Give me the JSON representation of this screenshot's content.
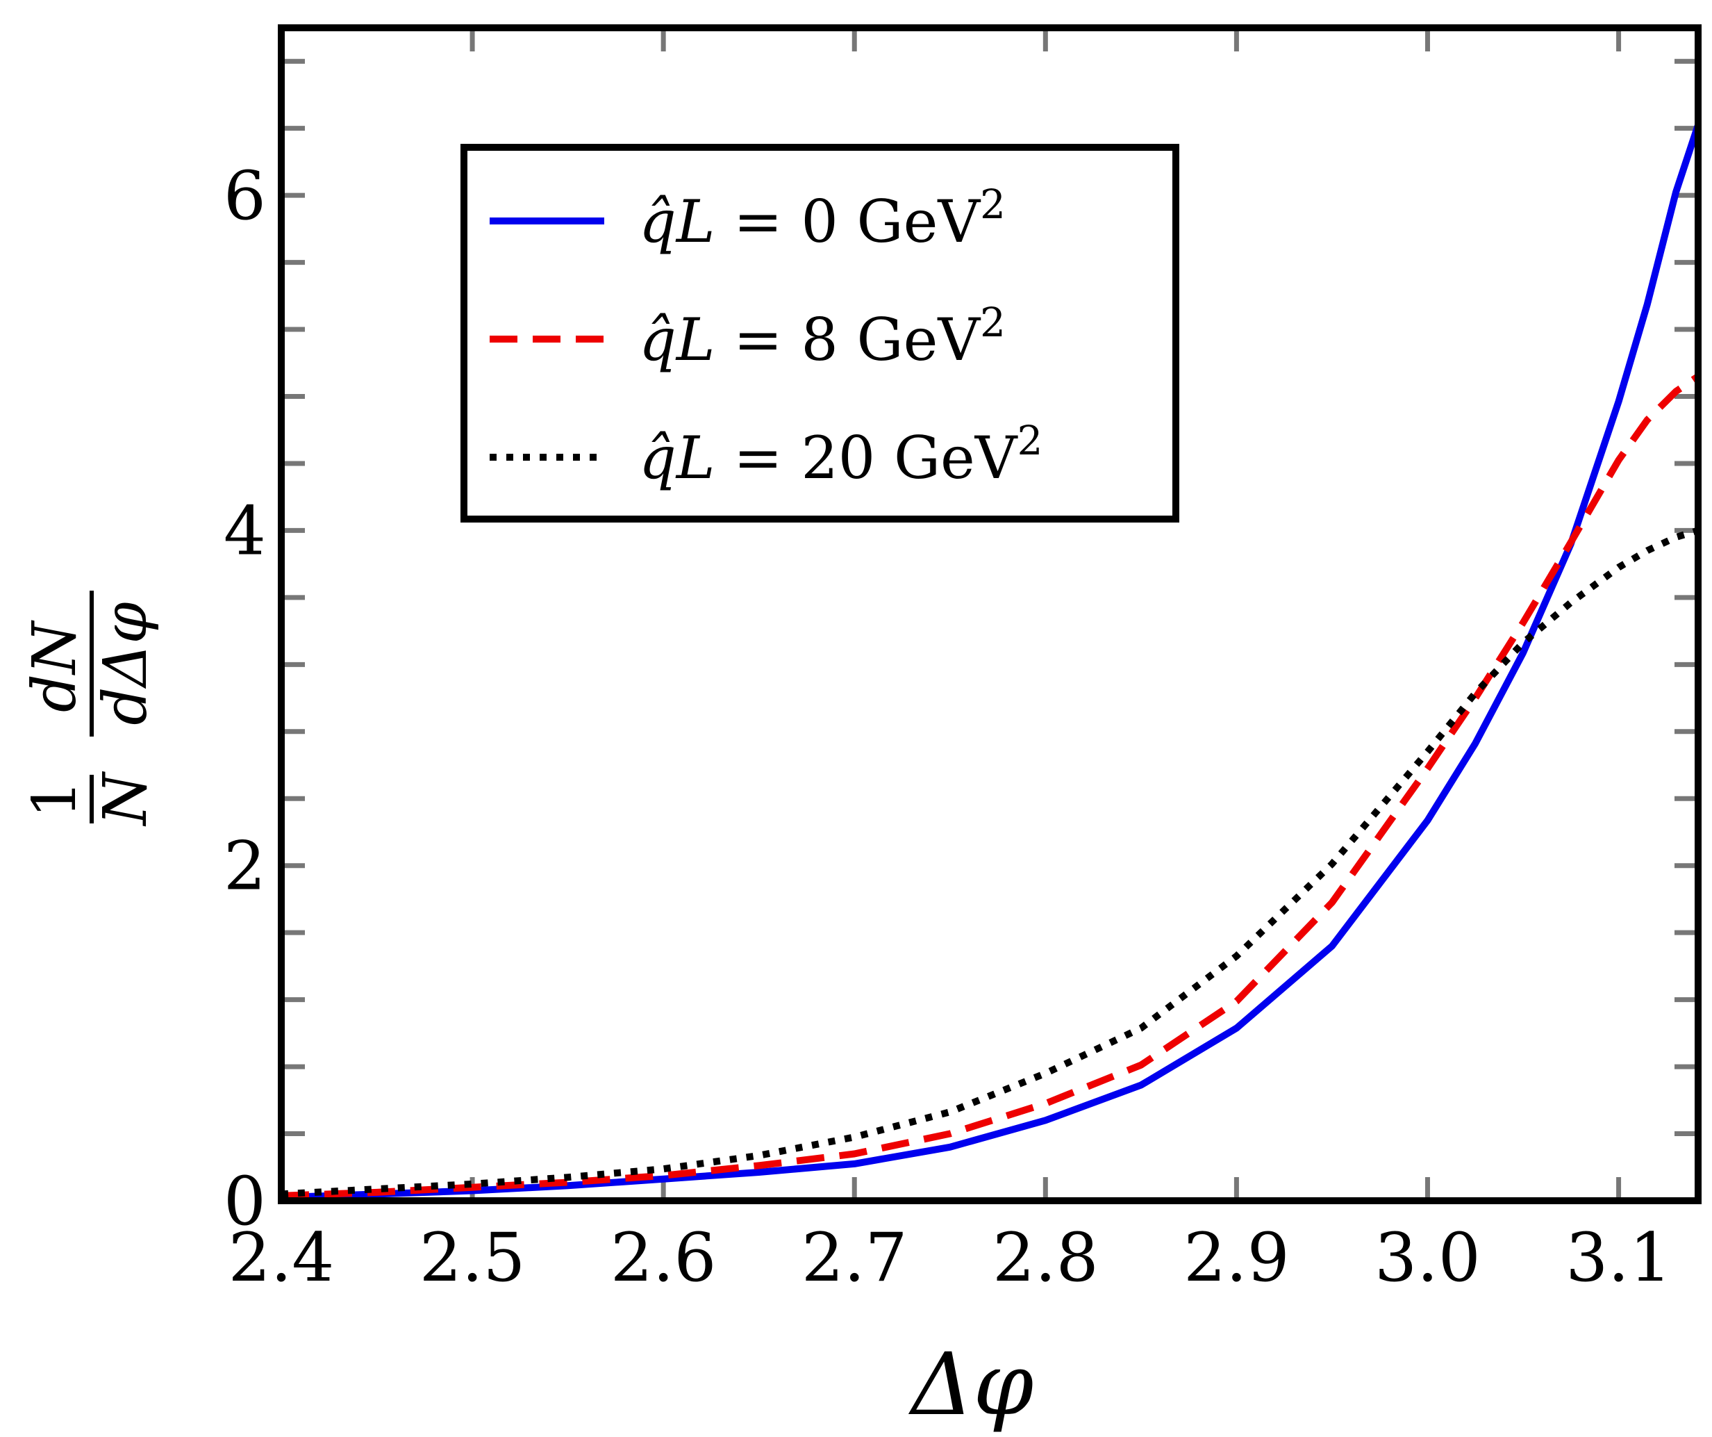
{
  "chart_data": {
    "type": "line",
    "title": "",
    "xlabel": "Δφ",
    "ylabel": {
      "numerator_left": "1",
      "denominator_left": "N",
      "numerator_right": "dN",
      "denominator_right": "dΔφ"
    },
    "xlim": [
      2.4,
      3.1416
    ],
    "ylim": [
      0,
      7
    ],
    "grid": false,
    "legend_position": "upper-left inside",
    "x_ticks": [
      2.4,
      2.5,
      2.6,
      2.7,
      2.8,
      2.9,
      3.0,
      3.1
    ],
    "x_tick_labels": [
      "2.4",
      "2.5",
      "2.6",
      "2.7",
      "2.8",
      "2.9",
      "3.0",
      "3.1"
    ],
    "y_ticks": [
      0,
      2,
      4,
      6
    ],
    "y_tick_labels": [
      "0",
      "2",
      "4",
      "6"
    ],
    "y_minor_step": 0.4,
    "x_minor_step": 0.1,
    "x": [
      2.4,
      2.45,
      2.5,
      2.55,
      2.6,
      2.65,
      2.7,
      2.75,
      2.8,
      2.85,
      2.9,
      2.95,
      3.0,
      3.025,
      3.05,
      3.075,
      3.1,
      3.115,
      3.13,
      3.1416
    ],
    "series": [
      {
        "name": "q̂L = 0 GeV²",
        "legend_label": {
          "math": "q̂L",
          "eq": "=",
          "value": "0",
          "unit": "GeV",
          "sup": "2"
        },
        "color": "#0000ee",
        "style": "solid",
        "values": [
          0.02,
          0.04,
          0.06,
          0.09,
          0.13,
          0.17,
          0.22,
          0.32,
          0.48,
          0.69,
          1.03,
          1.52,
          2.27,
          2.73,
          3.27,
          3.92,
          4.77,
          5.35,
          6.02,
          6.42
        ]
      },
      {
        "name": "q̂L = 8 GeV²",
        "legend_label": {
          "math": "q̂L",
          "eq": "=",
          "value": "8",
          "unit": "GeV",
          "sup": "2"
        },
        "color": "#ee0000",
        "style": "dashed",
        "values": [
          0.03,
          0.05,
          0.08,
          0.11,
          0.15,
          0.21,
          0.28,
          0.4,
          0.58,
          0.81,
          1.19,
          1.78,
          2.58,
          3.0,
          3.45,
          3.93,
          4.42,
          4.66,
          4.83,
          4.92
        ]
      },
      {
        "name": "q̂L = 20 GeV²",
        "legend_label": {
          "math": "q̂L",
          "eq": "=",
          "value": "20",
          "unit": "GeV",
          "sup": "2"
        },
        "color": "#000000",
        "style": "dotted",
        "values": [
          0.04,
          0.07,
          0.1,
          0.14,
          0.19,
          0.27,
          0.38,
          0.53,
          0.76,
          1.03,
          1.46,
          2.01,
          2.68,
          3.03,
          3.33,
          3.57,
          3.78,
          3.88,
          3.96,
          4.0
        ]
      }
    ]
  }
}
